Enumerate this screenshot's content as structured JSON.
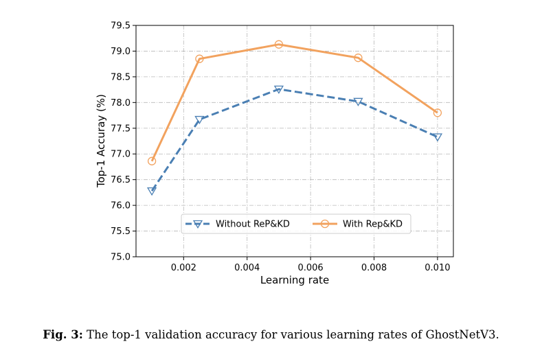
{
  "chart_data": {
    "type": "line",
    "xlabel": "Learning rate",
    "ylabel": "Top-1 Accuray (%)",
    "xlim": [
      0.0005,
      0.0105
    ],
    "ylim": [
      75.0,
      79.5
    ],
    "x_ticks": [
      "0.002",
      "0.004",
      "0.006",
      "0.008",
      "0.010"
    ],
    "y_ticks": [
      "75.0",
      "75.5",
      "76.0",
      "76.5",
      "77.0",
      "77.5",
      "78.0",
      "78.5",
      "79.0",
      "79.5"
    ],
    "grid": true,
    "legend_placement": "lower-center",
    "series": [
      {
        "name": "Without ReP&KD",
        "x": [
          0.001,
          0.0025,
          0.005,
          0.0075,
          0.01
        ],
        "values": [
          76.28,
          77.67,
          78.26,
          78.02,
          77.33
        ],
        "color": "#4a7fb3",
        "line_style": "dashed",
        "marker": "triangle-down"
      },
      {
        "name": "With Rep&KD",
        "x": [
          0.001,
          0.0025,
          0.005,
          0.0075,
          0.01
        ],
        "values": [
          76.86,
          78.85,
          79.13,
          78.87,
          77.8
        ],
        "color": "#f2a25e",
        "line_style": "solid",
        "marker": "circle"
      }
    ]
  },
  "caption": {
    "label": "Fig. 3:",
    "text": " The top-1 validation accuracy for various learning rates of GhostNetV3."
  }
}
